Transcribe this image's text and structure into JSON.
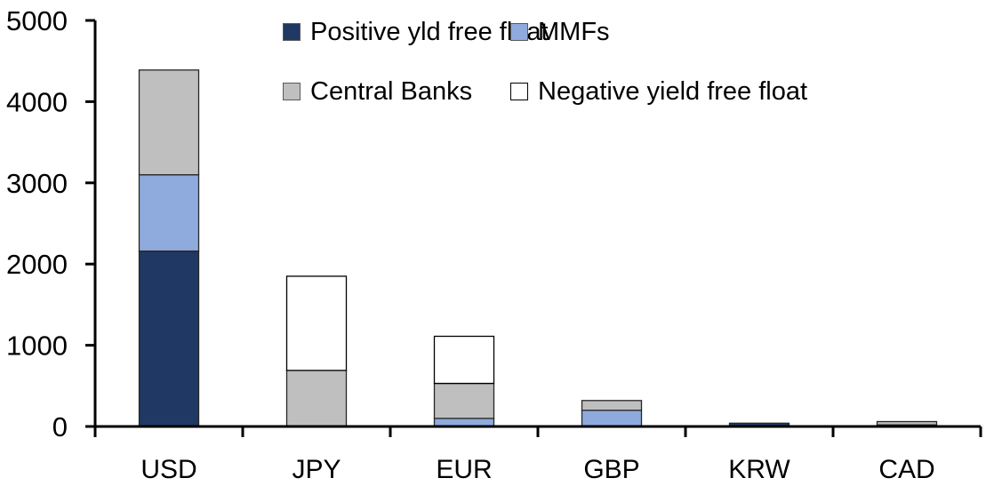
{
  "chart_data": {
    "type": "bar",
    "stacked": true,
    "title": "",
    "xlabel": "",
    "ylabel": "",
    "categories": [
      "USD",
      "JPY",
      "EUR",
      "GBP",
      "KRW",
      "CAD"
    ],
    "series": [
      {
        "name": "Positive yld free float",
        "color": "#1F3864",
        "values": [
          2160,
          0,
          0,
          0,
          40,
          20
        ]
      },
      {
        "name": "MMFs",
        "color": "#8FAADC",
        "values": [
          940,
          0,
          100,
          200,
          0,
          0
        ]
      },
      {
        "name": "Central Banks",
        "color": "#BFBFBF",
        "values": [
          1290,
          690,
          430,
          120,
          0,
          40
        ]
      },
      {
        "name": "Negative yield free float",
        "color": "#FFFFFF",
        "values": [
          0,
          1160,
          580,
          0,
          0,
          0
        ]
      }
    ],
    "totals": {
      "USD": 4390,
      "JPY": 1850,
      "EUR": 1110,
      "GBP": 320,
      "KRW": 40,
      "CAD": 60
    },
    "ylim": [
      0,
      5000
    ],
    "ytick_interval": 1000,
    "ytick_labels": [
      "0",
      "1000",
      "2000",
      "3000",
      "4000",
      "5000"
    ],
    "grid": "off",
    "legend_position": "top",
    "legend_rows": [
      [
        "Positive yld free float",
        "MMFs"
      ],
      [
        "Central Banks",
        "Negative yield free float"
      ]
    ],
    "colors": {
      "axis": "#000000",
      "text": "#000000",
      "segment_border": "#262626",
      "white_segment_border": "#000000",
      "background": "#FFFFFF"
    }
  }
}
